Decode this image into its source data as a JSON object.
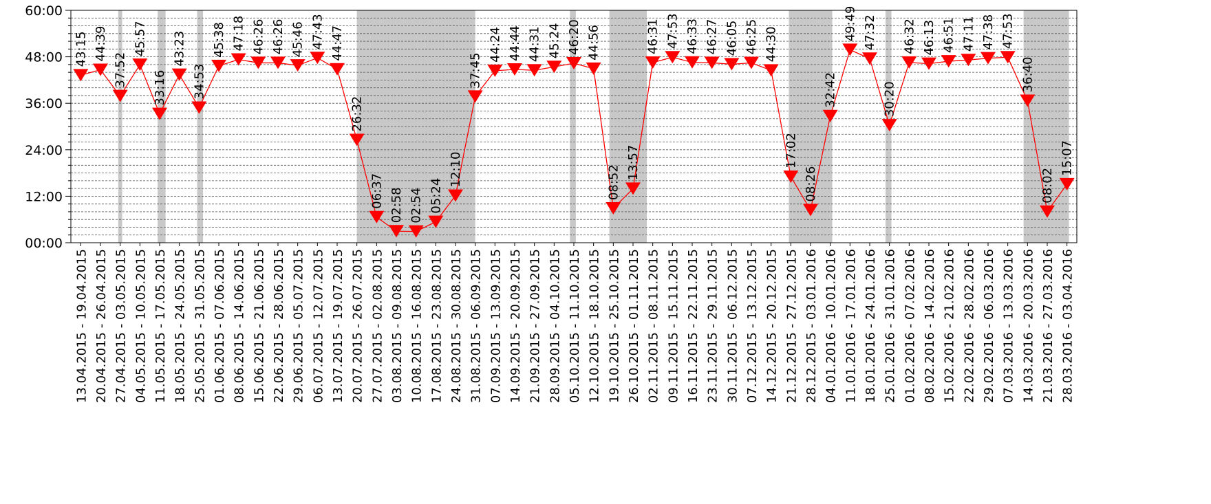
{
  "chart_data": {
    "type": "line",
    "title": "",
    "xlabel": "",
    "ylabel": "",
    "ylim": [
      0,
      60
    ],
    "y_unit": "hours",
    "y_ticks": [
      "00:00",
      "12:00",
      "24:00",
      "36:00",
      "48:00",
      "60:00"
    ],
    "grid": "horizontal dashed",
    "line_color": "#ff0000",
    "marker": "downward-triangle",
    "shade_color": "#c8c8c8",
    "categories": [
      "13.04.2015 - 19.04.2015",
      "20.04.2015 - 26.04.2015",
      "27.04.2015 - 03.05.2015",
      "04.05.2015 - 10.05.2015",
      "11.05.2015 - 17.05.2015",
      "18.05.2015 - 24.05.2015",
      "25.05.2015 - 31.05.2015",
      "01.06.2015 - 07.06.2015",
      "08.06.2015 - 14.06.2015",
      "15.06.2015 - 21.06.2015",
      "22.06.2015 - 28.06.2015",
      "29.06.2015 - 05.07.2015",
      "06.07.2015 - 12.07.2015",
      "13.07.2015 - 19.07.2015",
      "20.07.2015 - 26.07.2015",
      "27.07.2015 - 02.08.2015",
      "03.08.2015 - 09.08.2015",
      "10.08.2015 - 16.08.2015",
      "17.08.2015 - 23.08.2015",
      "24.08.2015 - 30.08.2015",
      "31.08.2015 - 06.09.2015",
      "07.09.2015 - 13.09.2015",
      "14.09.2015 - 20.09.2015",
      "21.09.2015 - 27.09.2015",
      "28.09.2015 - 04.10.2015",
      "05.10.2015 - 11.10.2015",
      "12.10.2015 - 18.10.2015",
      "19.10.2015 - 25.10.2015",
      "26.10.2015 - 01.11.2015",
      "02.11.2015 - 08.11.2015",
      "09.11.2015 - 15.11.2015",
      "16.11.2015 - 22.11.2015",
      "23.11.2015 - 29.11.2015",
      "30.11.2015 - 06.12.2015",
      "07.12.2015 - 13.12.2015",
      "14.12.2015 - 20.12.2015",
      "21.12.2015 - 27.12.2015",
      "28.12.2015 - 03.01.2016",
      "04.01.2016 - 10.01.2016",
      "11.01.2016 - 17.01.2016",
      "18.01.2016 - 24.01.2016",
      "25.01.2016 - 31.01.2016",
      "01.02.2016 - 07.02.2016",
      "08.02.2016 - 14.02.2016",
      "15.02.2016 - 21.02.2016",
      "22.02.2016 - 28.02.2016",
      "29.02.2016 - 06.03.2016",
      "07.03.2016 - 13.03.2016",
      "14.03.2016 - 20.03.2016",
      "21.03.2016 - 27.03.2016",
      "28.03.2016 - 03.04.2016"
    ],
    "labels": [
      "43:15",
      "44:39",
      "37:52",
      "45:57",
      "33:16",
      "43:23",
      "34:53",
      "45:38",
      "47:18",
      "46:26",
      "46:26",
      "45:46",
      "47:43",
      "44:47",
      "26:32",
      "06:37",
      "02:58",
      "02:54",
      "05:24",
      "12:10",
      "37:45",
      "44:24",
      "44:44",
      "44:31",
      "45:24",
      "46:20",
      "44:56",
      "08:52",
      "13:57",
      "46:31",
      "47:53",
      "46:33",
      "46:27",
      "46:05",
      "46:25",
      "44:30",
      "17:02",
      "08:26",
      "32:42",
      "49:49",
      "47:32",
      "30:20",
      "46:32",
      "46:13",
      "46:51",
      "47:11",
      "47:38",
      "47:53",
      "36:40",
      "08:02",
      "15:07"
    ],
    "values": [
      43.25,
      44.65,
      37.867,
      45.95,
      33.267,
      43.383,
      34.883,
      45.633,
      47.3,
      46.433,
      46.433,
      45.767,
      47.717,
      44.783,
      26.533,
      6.617,
      2.967,
      2.9,
      5.4,
      12.167,
      37.75,
      44.4,
      44.733,
      44.517,
      45.4,
      46.333,
      44.933,
      8.867,
      13.95,
      46.517,
      47.883,
      46.55,
      46.45,
      46.083,
      46.417,
      44.5,
      17.033,
      8.433,
      32.7,
      49.817,
      47.533,
      30.333,
      46.533,
      46.217,
      46.85,
      47.183,
      47.633,
      47.883,
      36.667,
      8.033,
      15.117
    ],
    "shaded_ranges": [
      [
        2.4,
        2.6
      ],
      [
        4.4,
        4.8
      ],
      [
        6.4,
        6.7
      ],
      [
        14.5,
        20.5
      ],
      [
        25.3,
        25.6
      ],
      [
        27.3,
        29.2
      ],
      [
        36.4,
        38.6
      ],
      [
        41.3,
        41.6
      ],
      [
        48.3,
        50.6
      ]
    ]
  }
}
